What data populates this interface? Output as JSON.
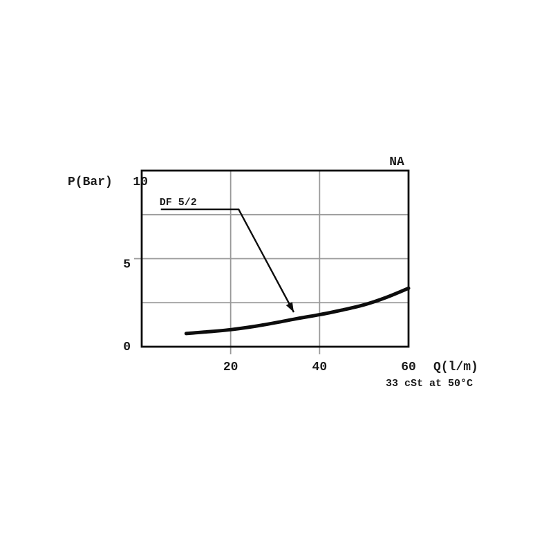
{
  "figure": {
    "background": "#ffffff"
  },
  "chart_data": {
    "type": "line",
    "title": "",
    "xlabel": "Q(l/m)",
    "ylabel": "P(Bar)",
    "xlim": [
      0,
      60
    ],
    "ylim": [
      0,
      10
    ],
    "grid": true,
    "legend_position": "none",
    "x_gridlines": [
      20,
      40
    ],
    "y_gridlines": [
      2.5,
      5,
      7.5
    ],
    "x_ticks": [
      {
        "value": 20,
        "label": "20"
      },
      {
        "value": 40,
        "label": "40"
      },
      {
        "value": 60,
        "label": "60"
      }
    ],
    "y_ticks": [
      {
        "value": 0,
        "label": "0"
      },
      {
        "value": 5,
        "label": "5"
      },
      {
        "value": 10,
        "label": "10"
      }
    ],
    "series": [
      {
        "name": "DF 5/2",
        "points": [
          [
            10,
            0.75
          ],
          [
            15,
            0.85
          ],
          [
            20,
            0.97
          ],
          [
            25,
            1.14
          ],
          [
            30,
            1.36
          ],
          [
            35,
            1.6
          ],
          [
            40,
            1.82
          ],
          [
            45,
            2.08
          ],
          [
            50,
            2.38
          ],
          [
            55,
            2.8
          ],
          [
            60,
            3.32
          ]
        ]
      }
    ],
    "annotations": {
      "corner_label": "NA",
      "note": "33 cSt at 50°C",
      "callout": {
        "label": "DF 5/2",
        "line_points": [
          [
            4.3,
            7.8
          ],
          [
            21.8,
            7.8
          ],
          [
            34.2,
            1.96
          ]
        ],
        "arrowhead": true
      }
    },
    "colors": {
      "curve": "#0d0d0d",
      "axis": "#0d0d0d",
      "grid": "#999999",
      "text": "#1a1a1a",
      "background": "#ffffff"
    }
  }
}
